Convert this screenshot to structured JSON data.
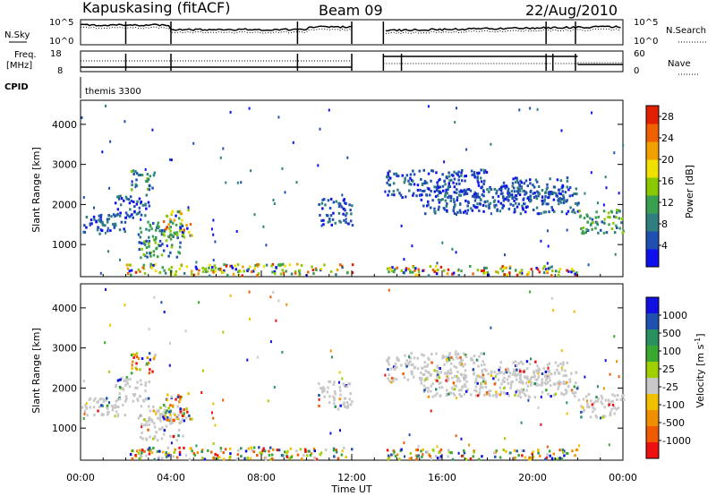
{
  "header": {
    "station": "Kapuskasing (fitACF)",
    "beam": "Beam 09",
    "date": "22/Aug/2010"
  },
  "top_panels": {
    "nsky_label": "N.Sky",
    "nsky_ticks": [
      "10^5",
      "10^0"
    ],
    "nsearch_label": "N.Search",
    "nsearch_ticks": [
      "10^5",
      "10^0"
    ],
    "freq_label_1": "Freq.",
    "freq_label_2": "[MHz]",
    "freq_ticks": [
      "18",
      "8"
    ],
    "nave_label": "Nave",
    "nave_ticks": [
      "60",
      "0"
    ],
    "cpid_label": "CPID",
    "cpid_value": "themis 3300"
  },
  "x_axis": {
    "label": "Time UT",
    "ticks": [
      "00:00",
      "04:00",
      "08:00",
      "12:00",
      "16:00",
      "20:00",
      "00:00"
    ]
  },
  "colors": {
    "power_scale": [
      "#1010ee",
      "#1f4fb0",
      "#2f7f7f",
      "#3aa050",
      "#8ac800",
      "#f0e000",
      "#f0a000",
      "#f06000",
      "#e02000"
    ],
    "velocity_scale": [
      "#ee1010",
      "#f05a00",
      "#f09000",
      "#f0c000",
      "#c8c8c8",
      "#a0d000",
      "#38a830",
      "#2a9060",
      "#2050b0",
      "#1010e0"
    ]
  },
  "chart_data": [
    {
      "type": "heatmap",
      "title": "Power",
      "ylabel": "Slant Range [km]",
      "yticks": [
        "1000",
        "2000",
        "3000",
        "4000"
      ],
      "ylim": [
        200,
        4600
      ],
      "xlim_hours": [
        0,
        24
      ],
      "colorbar_label": "Power [dB]",
      "colorbar_ticks": [
        "4",
        "8",
        "12",
        "16",
        "20",
        "24",
        "28"
      ],
      "colorbar_range": [
        0,
        30
      ],
      "regions": [
        {
          "t": [
            0.0,
            2.0
          ],
          "r": [
            1300,
            1800
          ],
          "level": "low"
        },
        {
          "t": [
            1.5,
            3.0
          ],
          "r": [
            1700,
            2300
          ],
          "level": "low"
        },
        {
          "t": [
            2.2,
            3.3
          ],
          "r": [
            2400,
            2900
          ],
          "level": "mid"
        },
        {
          "t": [
            2.5,
            4.5
          ],
          "r": [
            700,
            1600
          ],
          "level": "mid"
        },
        {
          "t": [
            3.6,
            4.9
          ],
          "r": [
            1200,
            1900
          ],
          "level": "high"
        },
        {
          "t": [
            10.5,
            12.0
          ],
          "r": [
            1500,
            2200
          ],
          "level": "low"
        },
        {
          "t": [
            2.0,
            12.0
          ],
          "r": [
            250,
            550
          ],
          "level": "high"
        },
        {
          "t": [
            13.5,
            18.0
          ],
          "r": [
            2200,
            2900
          ],
          "level": "low"
        },
        {
          "t": [
            15.0,
            22.0
          ],
          "r": [
            1800,
            2500
          ],
          "level": "low"
        },
        {
          "t": [
            18.5,
            21.5
          ],
          "r": [
            2100,
            2700
          ],
          "level": "low"
        },
        {
          "t": [
            22.0,
            24.0
          ],
          "r": [
            1300,
            1900
          ],
          "level": "mid"
        },
        {
          "t": [
            13.5,
            22.0
          ],
          "r": [
            250,
            500
          ],
          "level": "high"
        }
      ]
    },
    {
      "type": "heatmap",
      "title": "Velocity",
      "ylabel": "Slant Range [km]",
      "yticks": [
        "1000",
        "2000",
        "3000",
        "4000"
      ],
      "ylim": [
        200,
        4600
      ],
      "xlim_hours": [
        0,
        24
      ],
      "colorbar_label": "Velocity [m s^-1]",
      "colorbar_ticks": [
        "1000",
        "500",
        "100",
        "25",
        "-25",
        "-100",
        "-500",
        "-1000"
      ],
      "regions": [
        {
          "t": [
            0.0,
            2.0
          ],
          "r": [
            1300,
            1800
          ],
          "level": "ground"
        },
        {
          "t": [
            1.5,
            3.0
          ],
          "r": [
            1700,
            2300
          ],
          "level": "ground"
        },
        {
          "t": [
            2.2,
            3.3
          ],
          "r": [
            2400,
            2900
          ],
          "level": "mixed"
        },
        {
          "t": [
            2.5,
            4.5
          ],
          "r": [
            700,
            1600
          ],
          "level": "ground"
        },
        {
          "t": [
            3.6,
            4.9
          ],
          "r": [
            1200,
            1900
          ],
          "level": "mixed"
        },
        {
          "t": [
            10.5,
            12.0
          ],
          "r": [
            1500,
            2200
          ],
          "level": "ground"
        },
        {
          "t": [
            2.0,
            12.0
          ],
          "r": [
            250,
            550
          ],
          "level": "mixed"
        },
        {
          "t": [
            13.5,
            18.0
          ],
          "r": [
            2200,
            2900
          ],
          "level": "ground"
        },
        {
          "t": [
            15.0,
            22.0
          ],
          "r": [
            1800,
            2500
          ],
          "level": "ground"
        },
        {
          "t": [
            18.5,
            21.5
          ],
          "r": [
            2100,
            2700
          ],
          "level": "ground"
        },
        {
          "t": [
            22.0,
            24.0
          ],
          "r": [
            1300,
            1900
          ],
          "level": "ground"
        },
        {
          "t": [
            13.5,
            22.0
          ],
          "r": [
            250,
            500
          ],
          "level": "mixed"
        }
      ]
    }
  ]
}
